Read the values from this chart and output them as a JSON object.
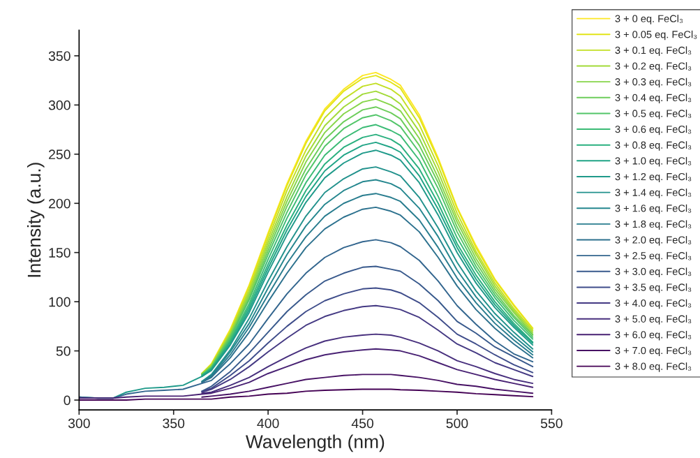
{
  "chart_data": {
    "type": "line",
    "xlabel": "Wavelength (nm)",
    "ylabel": "Intensity (a.u.)",
    "xlim": [
      300,
      550
    ],
    "xticks": [
      300,
      350,
      400,
      450,
      500,
      550
    ],
    "ylim": [
      -10,
      376
    ],
    "yticks": [
      0,
      50,
      100,
      150,
      200,
      250,
      300,
      350
    ],
    "legend": "right",
    "x": [
      300,
      310,
      318,
      325,
      335,
      345,
      355,
      365,
      370,
      380,
      390,
      400,
      410,
      420,
      430,
      440,
      450,
      457,
      465,
      470,
      480,
      490,
      500,
      510,
      520,
      530,
      540
    ],
    "series": [
      {
        "name": "3 + 0 eq. FeCl₃",
        "color": "#fde725",
        "values": [
          null,
          null,
          null,
          null,
          null,
          null,
          null,
          27,
          37,
          72,
          117,
          170,
          220,
          263,
          296,
          316,
          330,
          333,
          326,
          320,
          290,
          246,
          196,
          157,
          123,
          97,
          73
        ]
      },
      {
        "name": "3 + 0.05 eq. FeCl₃",
        "color": "#e2e418",
        "values": [
          null,
          null,
          null,
          null,
          null,
          null,
          null,
          27,
          36,
          71,
          116,
          168,
          218,
          261,
          294,
          314,
          327,
          330,
          323,
          317,
          287,
          244,
          195,
          155,
          122,
          96,
          73
        ]
      },
      {
        "name": "3 + 0.1 eq. FeCl₃",
        "color": "#c2df23",
        "values": [
          null,
          null,
          null,
          null,
          null,
          null,
          null,
          27,
          36,
          69,
          113,
          164,
          213,
          254,
          287,
          306,
          319,
          322,
          316,
          309,
          280,
          238,
          190,
          151,
          119,
          93,
          71
        ]
      },
      {
        "name": "3 + 0.2 eq. FeCl₃",
        "color": "#a2da37",
        "values": [
          null,
          null,
          null,
          null,
          null,
          null,
          null,
          27,
          35,
          68,
          110,
          160,
          207,
          248,
          279,
          298,
          311,
          314,
          308,
          301,
          273,
          232,
          185,
          148,
          116,
          91,
          69
        ]
      },
      {
        "name": "3 + 0.3 eq. FeCl₃",
        "color": "#86d549",
        "values": [
          null,
          null,
          null,
          null,
          null,
          null,
          null,
          26,
          34,
          66,
          107,
          156,
          202,
          242,
          272,
          291,
          303,
          306,
          300,
          294,
          266,
          226,
          181,
          144,
          113,
          89,
          67
        ]
      },
      {
        "name": "3 + 0.4 eq. FeCl₃",
        "color": "#6ccd5a",
        "values": [
          null,
          null,
          null,
          null,
          null,
          null,
          null,
          26,
          34,
          65,
          104,
          152,
          197,
          235,
          265,
          283,
          295,
          298,
          292,
          286,
          259,
          221,
          176,
          140,
          110,
          86,
          66
        ]
      },
      {
        "name": "3 + 0.5 eq. FeCl₃",
        "color": "#52c569",
        "values": [
          null,
          null,
          null,
          null,
          null,
          null,
          null,
          26,
          33,
          63,
          102,
          148,
          191,
          229,
          258,
          276,
          287,
          290,
          284,
          278,
          252,
          215,
          171,
          136,
          107,
          84,
          64
        ]
      },
      {
        "name": "3 + 0.6 eq. FeCl₃",
        "color": "#3bbb75",
        "values": [
          null,
          null,
          null,
          null,
          null,
          null,
          null,
          25,
          32,
          61,
          98,
          143,
          185,
          221,
          249,
          266,
          277,
          280,
          274,
          269,
          244,
          207,
          165,
          132,
          104,
          81,
          62
        ]
      },
      {
        "name": "3 + 0.8 eq. FeCl₃",
        "color": "#2ab07f",
        "values": [
          null,
          null,
          null,
          null,
          null,
          null,
          null,
          25,
          32,
          59,
          95,
          138,
          178,
          213,
          240,
          257,
          267,
          270,
          265,
          259,
          235,
          200,
          159,
          127,
          100,
          78,
          59
        ]
      },
      {
        "name": "3 + 1.0 eq. FeCl₃",
        "color": "#20a486",
        "values": [
          null,
          null,
          null,
          null,
          null,
          null,
          null,
          24,
          31,
          57,
          92,
          134,
          173,
          207,
          233,
          249,
          259,
          262,
          257,
          252,
          228,
          194,
          155,
          123,
          97,
          76,
          58
        ]
      },
      {
        "name": "3 + 1.2 eq. FeCl₃",
        "color": "#1f9a8a",
        "values": [
          3,
          2,
          2,
          8,
          12,
          13,
          15,
          24,
          30,
          56,
          89,
          130,
          168,
          201,
          226,
          241,
          251,
          254,
          249,
          244,
          221,
          188,
          150,
          119,
          94,
          74,
          56
        ]
      },
      {
        "name": "3 + 1.4 eq. FeCl₃",
        "color": "#21918c",
        "values": [
          null,
          null,
          null,
          null,
          null,
          null,
          null,
          19,
          26,
          51,
          83,
          121,
          156,
          187,
          211,
          225,
          235,
          237,
          232,
          228,
          206,
          175,
          140,
          111,
          88,
          69,
          52
        ]
      },
      {
        "name": "3 + 1.6 eq. FeCl₃",
        "color": "#24868e",
        "values": [
          null,
          null,
          null,
          null,
          null,
          null,
          null,
          19,
          25,
          49,
          78,
          114,
          148,
          177,
          199,
          213,
          222,
          224,
          220,
          215,
          195,
          166,
          132,
          105,
          83,
          65,
          49
        ]
      },
      {
        "name": "3 + 1.8 eq. FeCl₃",
        "color": "#287c8e",
        "values": [
          null,
          null,
          null,
          null,
          null,
          null,
          null,
          18,
          24,
          46,
          74,
          107,
          139,
          166,
          187,
          200,
          208,
          210,
          206,
          202,
          183,
          155,
          124,
          99,
          78,
          61,
          46
        ]
      },
      {
        "name": "3 + 2.0 eq. FeCl₃",
        "color": "#2c718e",
        "values": [
          null,
          null,
          null,
          null,
          null,
          null,
          null,
          18,
          23,
          43,
          69,
          100,
          129,
          155,
          174,
          186,
          194,
          196,
          192,
          188,
          171,
          145,
          116,
          92,
          73,
          57,
          43
        ]
      },
      {
        "name": "3 + 2.5 eq. FeCl₃",
        "color": "#32658e",
        "values": [
          3,
          2,
          2,
          6,
          9,
          10,
          11,
          17,
          20,
          37,
          57,
          83,
          108,
          129,
          145,
          155,
          161,
          163,
          160,
          156,
          142,
          121,
          96,
          77,
          60,
          47,
          39
        ]
      },
      {
        "name": "3 + 3.0 eq. FeCl₃",
        "color": "#38598c",
        "values": [
          null,
          null,
          null,
          null,
          null,
          null,
          null,
          9,
          14,
          29,
          48,
          69,
          90,
          107,
          121,
          129,
          135,
          136,
          133,
          131,
          118,
          101,
          80,
          68,
          54,
          44,
          34
        ]
      },
      {
        "name": "3 + 3.5 eq. FeCl₃",
        "color": "#3e4c8a",
        "values": [
          null,
          null,
          null,
          null,
          null,
          null,
          null,
          9,
          12,
          25,
          40,
          58,
          75,
          90,
          101,
          108,
          113,
          114,
          112,
          109,
          99,
          84,
          67,
          57,
          46,
          36,
          28
        ]
      },
      {
        "name": "3 + 4.0 eq. FeCl₃",
        "color": "#443983",
        "values": [
          null,
          null,
          null,
          null,
          null,
          null,
          null,
          8,
          11,
          21,
          34,
          49,
          63,
          76,
          85,
          91,
          95,
          96,
          94,
          92,
          84,
          71,
          57,
          48,
          38,
          31,
          24
        ]
      },
      {
        "name": "3 + 5.0 eq. FeCl₃",
        "color": "#472f7d",
        "values": [
          null,
          null,
          null,
          null,
          null,
          null,
          null,
          7,
          8,
          15,
          23,
          34,
          44,
          53,
          60,
          64,
          66,
          67,
          66,
          64,
          58,
          50,
          40,
          34,
          27,
          21,
          17
        ]
      },
      {
        "name": "3 + 6.0 eq. FeCl₃",
        "color": "#482173",
        "values": [
          2,
          2,
          2,
          3,
          4,
          4,
          4,
          6,
          7,
          12,
          18,
          27,
          34,
          41,
          46,
          49,
          51,
          52,
          51,
          50,
          45,
          38,
          31,
          26,
          21,
          17,
          13
        ]
      },
      {
        "name": "3 + 7.0 eq. FeCl₃",
        "color": "#471164",
        "values": [
          null,
          null,
          null,
          null,
          null,
          null,
          null,
          3,
          4,
          6,
          9,
          13,
          17,
          21,
          23,
          25,
          26,
          26,
          26,
          25,
          23,
          20,
          16,
          14,
          11,
          9,
          7
        ]
      },
      {
        "name": "3 + 8.0 eq. FeCl₃",
        "color": "#440154",
        "values": [
          0,
          0,
          0,
          0,
          1,
          1,
          1,
          1,
          1,
          3,
          4,
          6,
          7,
          9,
          10,
          10.5,
          11,
          11,
          11,
          10.5,
          10,
          9,
          8,
          6.5,
          5.5,
          4.5,
          3.5
        ]
      }
    ]
  }
}
